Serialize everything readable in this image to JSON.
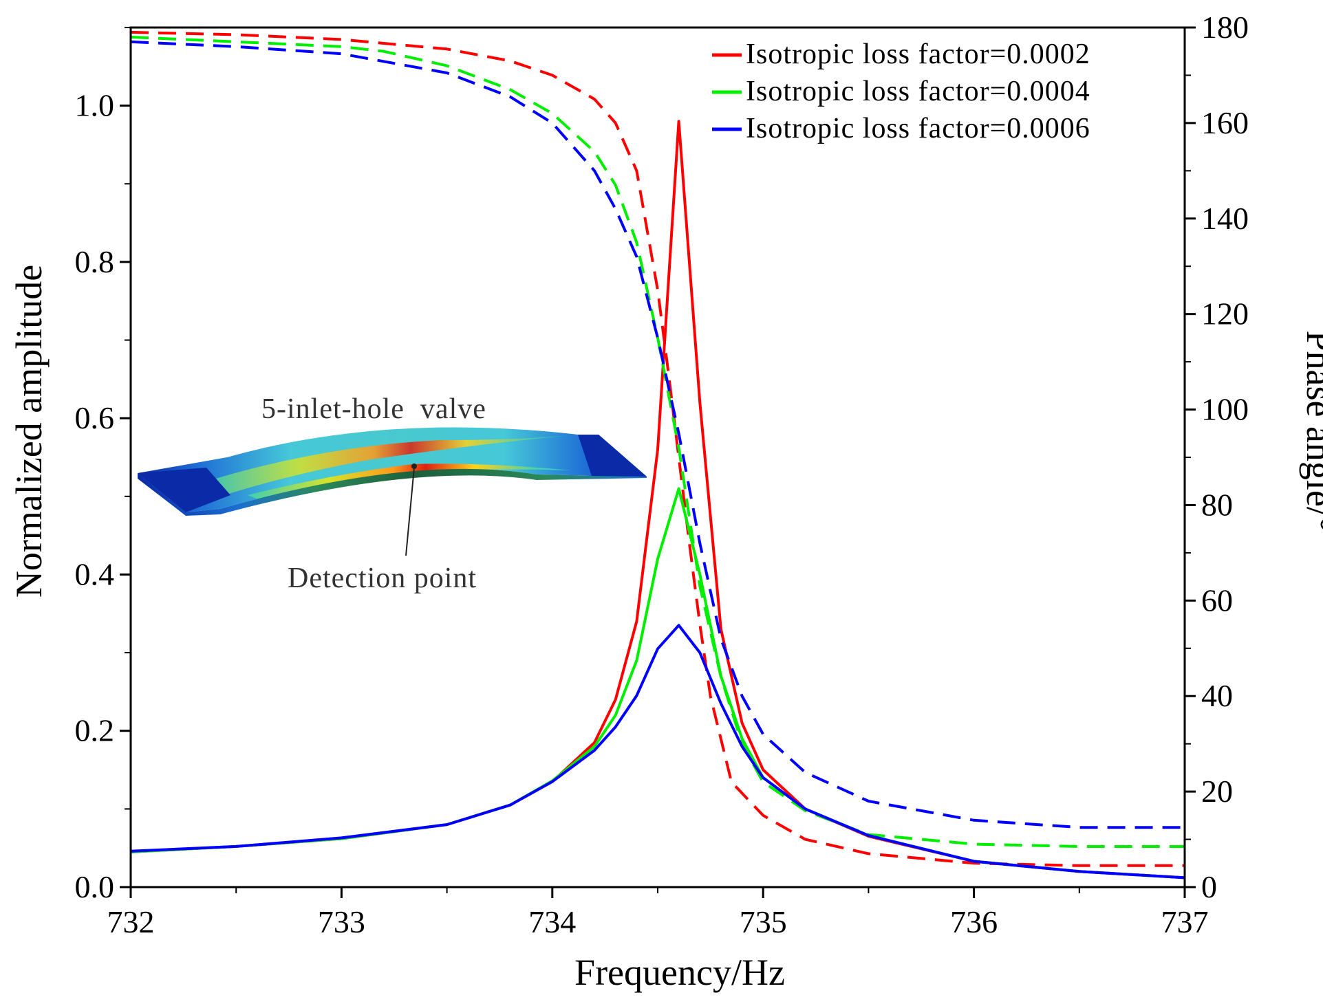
{
  "chart_data": {
    "type": "line",
    "title": "",
    "xlabel": "Frequency/Hz",
    "ylabel": "Normalized amplitude",
    "y2label": "Phase angle/°",
    "xlim": [
      732,
      737
    ],
    "ylim": [
      0,
      1.1
    ],
    "y2lim": [
      0,
      180
    ],
    "x_ticks": [
      732,
      733,
      734,
      735,
      736,
      737
    ],
    "x_tick_labels": [
      "732",
      "733",
      "734",
      "735",
      "736",
      "737"
    ],
    "y_ticks": [
      0,
      0.2,
      0.4,
      0.6,
      0.8,
      1.0
    ],
    "y_tick_labels": [
      "0.0",
      "0.2",
      "0.4",
      "0.6",
      "0.8",
      "1.0"
    ],
    "y2_ticks": [
      0,
      20,
      40,
      60,
      80,
      100,
      120,
      140,
      160,
      180
    ],
    "y2_tick_labels": [
      "0",
      "20",
      "40",
      "60",
      "80",
      "100",
      "120",
      "140",
      "160",
      "180"
    ],
    "legend_position": "top-right",
    "legend": [
      {
        "label": "Isotropic loss factor=0.0002",
        "color": "#ff0000"
      },
      {
        "label": "Isotropic loss factor=0.0004",
        "color": "#00ee00"
      },
      {
        "label": "Isotropic loss factor=0.0006",
        "color": "#0000ff"
      }
    ],
    "annotations": {
      "inset_title": "5-inlet-hole  valve",
      "detection_label": "Detection point"
    },
    "amplitude_x": [
      732.0,
      732.5,
      733.0,
      733.5,
      733.8,
      734.0,
      734.2,
      734.3,
      734.4,
      734.5,
      734.6,
      734.7,
      734.8,
      734.9,
      735.0,
      735.2,
      735.5,
      736.0,
      736.5,
      737.0
    ],
    "series": [
      {
        "name": "Isotropic loss factor=0.0002",
        "color": "#ff0000",
        "amplitude": [
          0.045,
          0.052,
          0.062,
          0.08,
          0.105,
          0.135,
          0.185,
          0.24,
          0.34,
          0.56,
          0.98,
          0.62,
          0.33,
          0.21,
          0.15,
          0.1,
          0.065,
          0.033,
          0.02,
          0.012
        ],
        "phase_x": [
          732.0,
          732.5,
          733.0,
          733.5,
          733.8,
          734.0,
          734.2,
          734.3,
          734.4,
          734.5,
          734.55,
          734.6,
          734.65,
          734.7,
          734.75,
          734.85,
          735.0,
          735.2,
          735.5,
          736.0,
          736.5,
          737.0
        ],
        "phase": [
          179,
          178.5,
          177.5,
          175.5,
          173,
          170,
          165,
          160,
          150,
          125,
          108,
          90,
          72,
          55,
          40,
          22,
          15,
          10,
          7,
          5,
          4.5,
          4.5
        ]
      },
      {
        "name": "Isotropic loss factor=0.0004",
        "color": "#00ee00",
        "amplitude": [
          0.045,
          0.052,
          0.062,
          0.08,
          0.105,
          0.136,
          0.18,
          0.22,
          0.29,
          0.42,
          0.51,
          0.4,
          0.27,
          0.19,
          0.14,
          0.1,
          0.066,
          0.033,
          0.02,
          0.012
        ],
        "phase_x": [
          732.0,
          732.5,
          733.0,
          733.2,
          733.5,
          733.8,
          734.0,
          734.2,
          734.3,
          734.4,
          734.5,
          734.6,
          734.7,
          734.8,
          734.9,
          735.0,
          735.2,
          735.5,
          736.0,
          736.5,
          737.0
        ],
        "phase": [
          178,
          177,
          176,
          175,
          172,
          167,
          162,
          154,
          147,
          135,
          115,
          92,
          63,
          44,
          30,
          22,
          16,
          11,
          9,
          8.5,
          8.5
        ]
      },
      {
        "name": "Isotropic loss factor=0.0006",
        "color": "#0000ff",
        "amplitude": [
          0.046,
          0.052,
          0.063,
          0.08,
          0.105,
          0.135,
          0.175,
          0.205,
          0.245,
          0.305,
          0.335,
          0.3,
          0.235,
          0.18,
          0.14,
          0.1,
          0.066,
          0.033,
          0.02,
          0.012
        ],
        "phase_x": [
          732.0,
          732.5,
          733.0,
          733.5,
          733.8,
          734.0,
          734.2,
          734.3,
          734.4,
          734.5,
          734.6,
          734.7,
          734.8,
          734.9,
          735.0,
          735.2,
          735.5,
          736.0,
          736.5,
          737.0
        ],
        "phase": [
          177,
          176,
          174.5,
          170.5,
          165.5,
          160,
          150,
          142,
          132,
          115,
          95,
          72,
          52,
          40,
          32,
          24,
          18,
          14,
          12.5,
          12.5
        ]
      }
    ]
  }
}
